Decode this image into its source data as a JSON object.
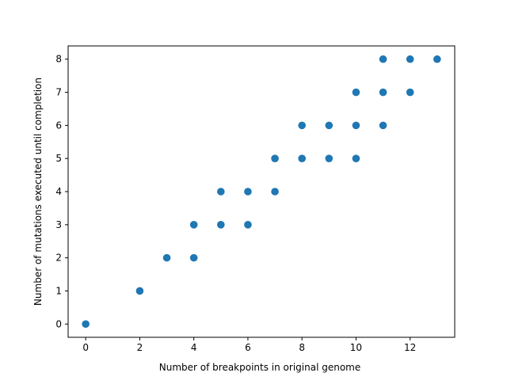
{
  "chart_data": {
    "type": "scatter",
    "title": "",
    "xlabel": "Number of breakpoints in original genome",
    "ylabel": "Number of mutations executed until completion",
    "xlim": [
      -0.65,
      13.65
    ],
    "ylim": [
      -0.4,
      8.4
    ],
    "xticks": [
      0,
      2,
      4,
      6,
      8,
      10,
      12
    ],
    "yticks": [
      0,
      1,
      2,
      3,
      4,
      5,
      6,
      7,
      8
    ],
    "grid": false,
    "marker_color": "#1f77b4",
    "points": [
      {
        "x": 0,
        "y": 0
      },
      {
        "x": 2,
        "y": 1
      },
      {
        "x": 3,
        "y": 2
      },
      {
        "x": 4,
        "y": 2
      },
      {
        "x": 4,
        "y": 3
      },
      {
        "x": 5,
        "y": 3
      },
      {
        "x": 5,
        "y": 4
      },
      {
        "x": 6,
        "y": 3
      },
      {
        "x": 6,
        "y": 4
      },
      {
        "x": 7,
        "y": 4
      },
      {
        "x": 7,
        "y": 5
      },
      {
        "x": 8,
        "y": 5
      },
      {
        "x": 8,
        "y": 6
      },
      {
        "x": 9,
        "y": 5
      },
      {
        "x": 9,
        "y": 6
      },
      {
        "x": 10,
        "y": 5
      },
      {
        "x": 10,
        "y": 6
      },
      {
        "x": 10,
        "y": 7
      },
      {
        "x": 11,
        "y": 6
      },
      {
        "x": 11,
        "y": 7
      },
      {
        "x": 11,
        "y": 8
      },
      {
        "x": 12,
        "y": 7
      },
      {
        "x": 12,
        "y": 8
      },
      {
        "x": 13,
        "y": 8
      }
    ]
  }
}
